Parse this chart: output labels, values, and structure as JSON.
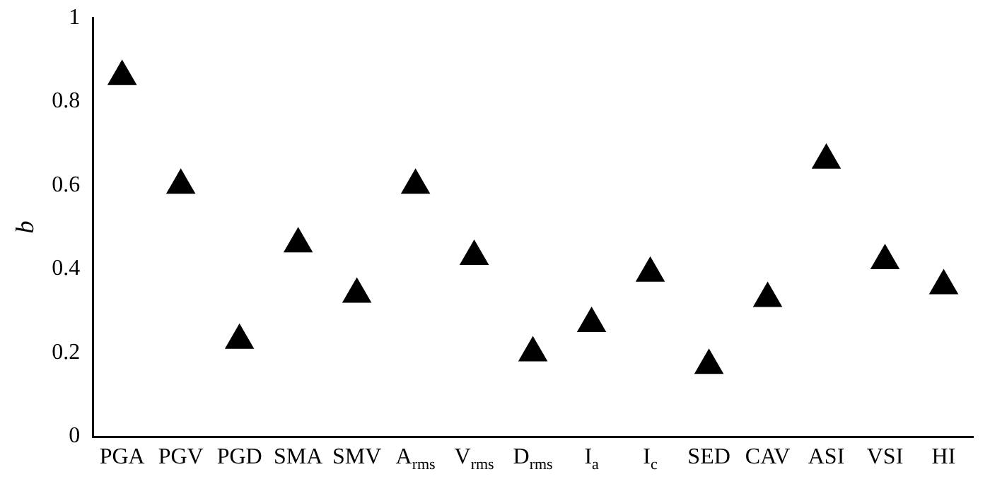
{
  "chart_data": {
    "type": "scatter",
    "ylabel": "b",
    "categories": [
      "PGA",
      "PGV",
      "PGD",
      "SMA",
      "SMV",
      "A$_{rms}$",
      "V$_{rms}$",
      "D$_{rms}$",
      "I$_{a}$",
      "I$_{c}$",
      "SED",
      "CAV",
      "ASI",
      "VSI",
      "HI"
    ],
    "series": [
      {
        "color": "#000000",
        "values": [
          0.86,
          0.6,
          0.23,
          0.46,
          0.34,
          0.6,
          0.43,
          0.2,
          0.27,
          0.39,
          0.17,
          0.33,
          0.66,
          0.42,
          0.36
        ]
      }
    ],
    "ylim": [
      0,
      1
    ],
    "yticks": [
      0,
      0.2,
      0.4,
      0.6,
      0.8,
      1
    ],
    "grid": false,
    "legend": false,
    "marker": "triangle"
  }
}
